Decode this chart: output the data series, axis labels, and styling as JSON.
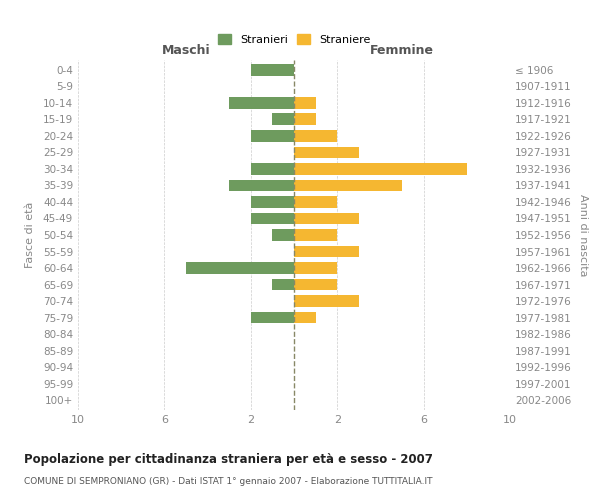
{
  "age_groups": [
    "0-4",
    "5-9",
    "10-14",
    "15-19",
    "20-24",
    "25-29",
    "30-34",
    "35-39",
    "40-44",
    "45-49",
    "50-54",
    "55-59",
    "60-64",
    "65-69",
    "70-74",
    "75-79",
    "80-84",
    "85-89",
    "90-94",
    "95-99",
    "100+"
  ],
  "birth_years": [
    "2002-2006",
    "1997-2001",
    "1992-1996",
    "1987-1991",
    "1982-1986",
    "1977-1981",
    "1972-1976",
    "1967-1971",
    "1962-1966",
    "1957-1961",
    "1952-1956",
    "1947-1951",
    "1942-1946",
    "1937-1941",
    "1932-1936",
    "1927-1931",
    "1922-1926",
    "1917-1921",
    "1912-1916",
    "1907-1911",
    "≤ 1906"
  ],
  "males": [
    2,
    0,
    3,
    1,
    2,
    0,
    2,
    3,
    2,
    2,
    1,
    0,
    5,
    1,
    0,
    2,
    0,
    0,
    0,
    0,
    0
  ],
  "females": [
    0,
    0,
    1,
    1,
    2,
    3,
    8,
    5,
    2,
    3,
    2,
    3,
    2,
    2,
    3,
    1,
    0,
    0,
    0,
    0,
    0
  ],
  "male_color": "#6e9b5e",
  "female_color": "#f5b731",
  "title": "Popolazione per cittadinanza straniera per età e sesso - 2007",
  "subtitle": "COMUNE DI SEMPRONIANO (GR) - Dati ISTAT 1° gennaio 2007 - Elaborazione TUTTITALIA.IT",
  "ylabel_left": "Fasce di età",
  "ylabel_right": "Anni di nascita",
  "xlabel_left": "Maschi",
  "xlabel_right": "Femmine",
  "legend_male": "Stranieri",
  "legend_female": "Straniere",
  "xlim": 10,
  "background_color": "#ffffff",
  "grid_color": "#cccccc"
}
